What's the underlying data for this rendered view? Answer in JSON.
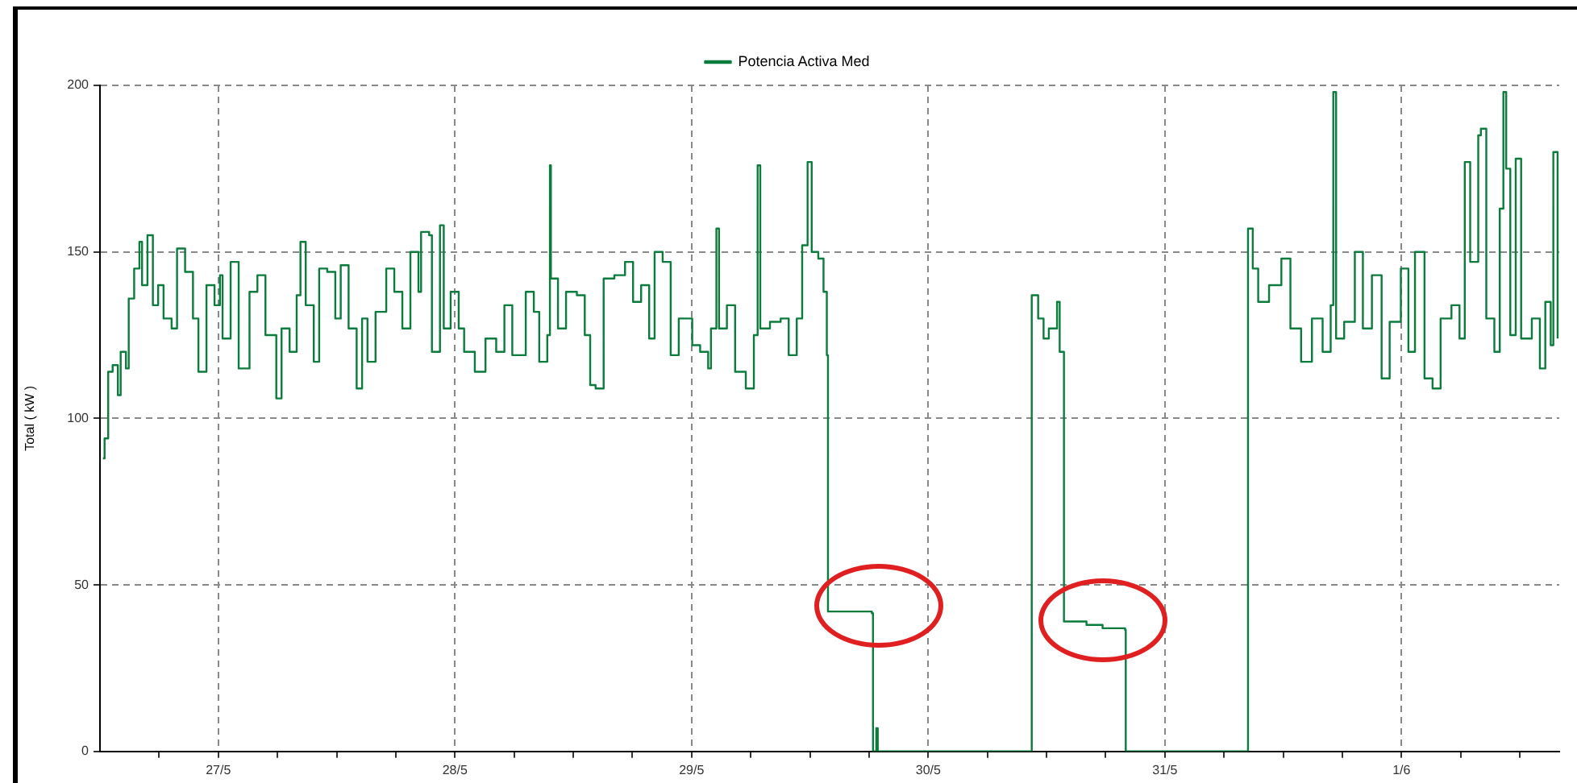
{
  "chart_data": {
    "type": "step",
    "ylabel": "Total ( kW )",
    "legend": "top",
    "grid": true,
    "line_style": "solid",
    "marker": "none",
    "x": [
      "--05-26T12:18",
      "--05-26T12:28",
      "--05-26T12:50",
      "--05-26T13:17",
      "--05-26T13:49",
      "--05-26T14:06",
      "--05-26T14:38",
      "--05-26T14:55",
      "--05-26T15:28",
      "--05-26T16:00",
      "--05-26T16:16",
      "--05-26T16:49",
      "--05-26T17:22",
      "--05-26T17:54",
      "--05-26T18:27",
      "--05-26T19:16",
      "--05-26T19:49",
      "--05-26T20:38",
      "--05-26T21:26",
      "--05-26T21:59",
      "--05-26T22:48",
      "--05-26T23:37",
      "--05-27T00:10",
      "--05-27T00:26",
      "--05-27T01:15",
      "--05-27T02:04",
      "--05-27T03:10",
      "--05-27T03:58",
      "--05-27T04:47",
      "--05-27T05:53",
      "--05-27T06:25",
      "--05-27T07:14",
      "--05-27T07:57",
      "--05-27T08:20",
      "--05-27T08:52",
      "--05-27T09:41",
      "--05-27T10:14",
      "--05-27T11:03",
      "--05-27T11:52",
      "--05-27T12:25",
      "--05-27T13:13",
      "--05-27T14:02",
      "--05-27T14:35",
      "--05-27T15:08",
      "--05-27T15:57",
      "--05-27T17:02",
      "--05-27T17:51",
      "--05-27T18:40",
      "--05-27T19:29",
      "--05-27T20:18",
      "--05-27T20:34",
      "--05-27T21:23",
      "--05-27T21:40",
      "--05-27T22:06",
      "--05-27T22:29",
      "--05-27T22:52",
      "--05-27T23:34",
      "--05-28T00:23",
      "--05-28T00:56",
      "--05-28T02:01",
      "--05-28T03:06",
      "--05-28T04:11",
      "--05-28T05:01",
      "--05-28T05:49",
      "--05-28T07:11",
      "--05-28T08:00",
      "--05-28T08:33",
      "--05-28T09:22",
      "--05-28T09:38",
      "--05-28T09:44",
      "--05-28T10:27",
      "--05-28T11:16",
      "--05-28T12:22",
      "--05-28T13:10",
      "--05-28T13:43",
      "--05-28T14:16",
      "--05-28T15:05",
      "--05-28T16:10",
      "--05-28T17:15",
      "--05-28T18:04",
      "--05-28T18:53",
      "--05-28T19:42",
      "--05-28T20:15",
      "--05-28T21:04",
      "--05-28T21:53",
      "--05-28T22:42",
      "--05-29T00:04",
      "--05-29T00:52",
      "--05-29T01:41",
      "--05-29T01:58",
      "--05-29T02:31",
      "--05-29T02:47",
      "--05-29T03:35",
      "--05-29T04:25",
      "--05-29T05:30",
      "--05-29T06:19",
      "--05-29T06:42",
      "--05-29T06:58",
      "--05-29T07:57",
      "--05-29T09:02",
      "--05-29T09:51",
      "--05-29T10:40",
      "--05-29T11:13",
      "--05-29T11:46",
      "--05-29T12:11",
      "--05-29T12:51",
      "--05-29T13:23",
      "--05-29T13:43",
      "--05-29T13:50",
      "--05-29T15:01",
      "--05-29T18:17",
      "--05-29T18:24",
      "--05-29T18:44",
      "--05-29T18:53",
      "--05-30T10:27",
      "--05-30T10:30",
      "--05-30T11:09",
      "--05-30T11:42",
      "--05-30T12:14",
      "--05-30T13:04",
      "--05-30T13:20",
      "--05-30T13:43",
      "--05-30T13:46",
      "--05-30T16:03",
      "--05-30T17:41",
      "--05-30T19:58",
      "--05-30T20:02",
      "--05-31T08:23",
      "--05-31T08:26",
      "--05-31T08:55",
      "--05-31T09:28",
      "--05-31T10:34",
      "--05-31T11:49",
      "--05-31T12:44",
      "--05-31T13:49",
      "--05-31T14:55",
      "--05-31T16:00",
      "--05-31T16:49",
      "--05-31T17:05",
      "--05-31T17:22",
      "--05-31T18:11",
      "--05-31T19:16",
      "--05-31T20:05",
      "--05-31T21:00",
      "--05-31T21:59",
      "--05-31T22:48",
      "--05-31T23:56",
      "--06-01T00:42",
      "--06-01T01:22",
      "--06-01T02:20",
      "--06-01T03:09",
      "--06-01T03:58",
      "--06-01T05:04",
      "--06-01T05:53",
      "--06-01T06:25",
      "--06-01T06:58",
      "--06-01T07:47",
      "--06-01T08:03",
      "--06-01T08:36",
      "--06-01T09:25",
      "--06-01T09:58",
      "--06-01T10:20",
      "--06-01T10:37",
      "--06-01T11:02",
      "--06-01T11:35",
      "--06-01T12:08",
      "--06-01T13:13",
      "--06-01T14:02",
      "--06-01T14:35",
      "--06-01T15:08",
      "--06-01T15:24",
      "--06-01T15:50"
    ],
    "series": [
      {
        "name": "Potencia Activa Med",
        "color": "#0b7c3c",
        "values": [
          88,
          94,
          114,
          116,
          107,
          120,
          115,
          136,
          145,
          153,
          140,
          155,
          134,
          140,
          130,
          127,
          151,
          144,
          130,
          114,
          140,
          134,
          143,
          124,
          147,
          115,
          138,
          143,
          125,
          106,
          127,
          120,
          137,
          153,
          134,
          117,
          145,
          144,
          130,
          146,
          127,
          109,
          130,
          117,
          132,
          145,
          138,
          127,
          150,
          138,
          156,
          155,
          120,
          120,
          158,
          127,
          138,
          127,
          120,
          114,
          124,
          120,
          134,
          119,
          138,
          132,
          117,
          125,
          176,
          142,
          127,
          138,
          137,
          125,
          110,
          109,
          142,
          143,
          147,
          135,
          140,
          124,
          150,
          147,
          119,
          130,
          122,
          120,
          115,
          127,
          157,
          127,
          134,
          114,
          109,
          125,
          176,
          127,
          129,
          130,
          119,
          130,
          152,
          177,
          150,
          148,
          138,
          119,
          42,
          42,
          41.5,
          0,
          7,
          0,
          0,
          137,
          130,
          124,
          127,
          135,
          120,
          120,
          39,
          38,
          37,
          36.5,
          0,
          0,
          157,
          145,
          135,
          140,
          148,
          127,
          117,
          130,
          120,
          134,
          198,
          124,
          129,
          150,
          127,
          143,
          112,
          129,
          145,
          120,
          150,
          112,
          109,
          130,
          134,
          124,
          177,
          147,
          185,
          187,
          130,
          120,
          163,
          198,
          175,
          125,
          178,
          124,
          130,
          115,
          135,
          122,
          180,
          124
        ]
      }
    ],
    "xlim": [
      "--05-26T12:00",
      "--06-01T16:00"
    ],
    "xticks": [
      {
        "value": "--05-26T18:00",
        "label": null
      },
      {
        "value": "--05-27",
        "label": "27/5"
      },
      {
        "value": "--05-27T06:00",
        "label": null
      },
      {
        "value": "--05-27T12:00",
        "label": null
      },
      {
        "value": "--05-27T18:00",
        "label": null
      },
      {
        "value": "--05-28",
        "label": "28/5"
      },
      {
        "value": "--05-28T06:00",
        "label": null
      },
      {
        "value": "--05-28T12:00",
        "label": null
      },
      {
        "value": "--05-28T18:00",
        "label": null
      },
      {
        "value": "--05-29",
        "label": "29/5"
      },
      {
        "value": "--05-29T06:00",
        "label": null
      },
      {
        "value": "--05-29T12:00",
        "label": null
      },
      {
        "value": "--05-29T18:00",
        "label": null
      },
      {
        "value": "--05-30",
        "label": "30/5"
      },
      {
        "value": "--05-30T06:00",
        "label": null
      },
      {
        "value": "--05-30T12:00",
        "label": null
      },
      {
        "value": "--05-30T18:00",
        "label": null
      },
      {
        "value": "--05-31",
        "label": "31/5"
      },
      {
        "value": "--05-31T06:00",
        "label": null
      },
      {
        "value": "--05-31T12:00",
        "label": null
      },
      {
        "value": "--05-31T18:00",
        "label": null
      },
      {
        "value": "--06-01",
        "label": "1/6"
      },
      {
        "value": "--06-01T06:00",
        "label": null
      },
      {
        "value": "--06-01T12:00",
        "label": null
      }
    ],
    "ylim": [
      0,
      200
    ],
    "yticks": [
      0,
      50,
      100,
      150,
      200
    ]
  }
}
